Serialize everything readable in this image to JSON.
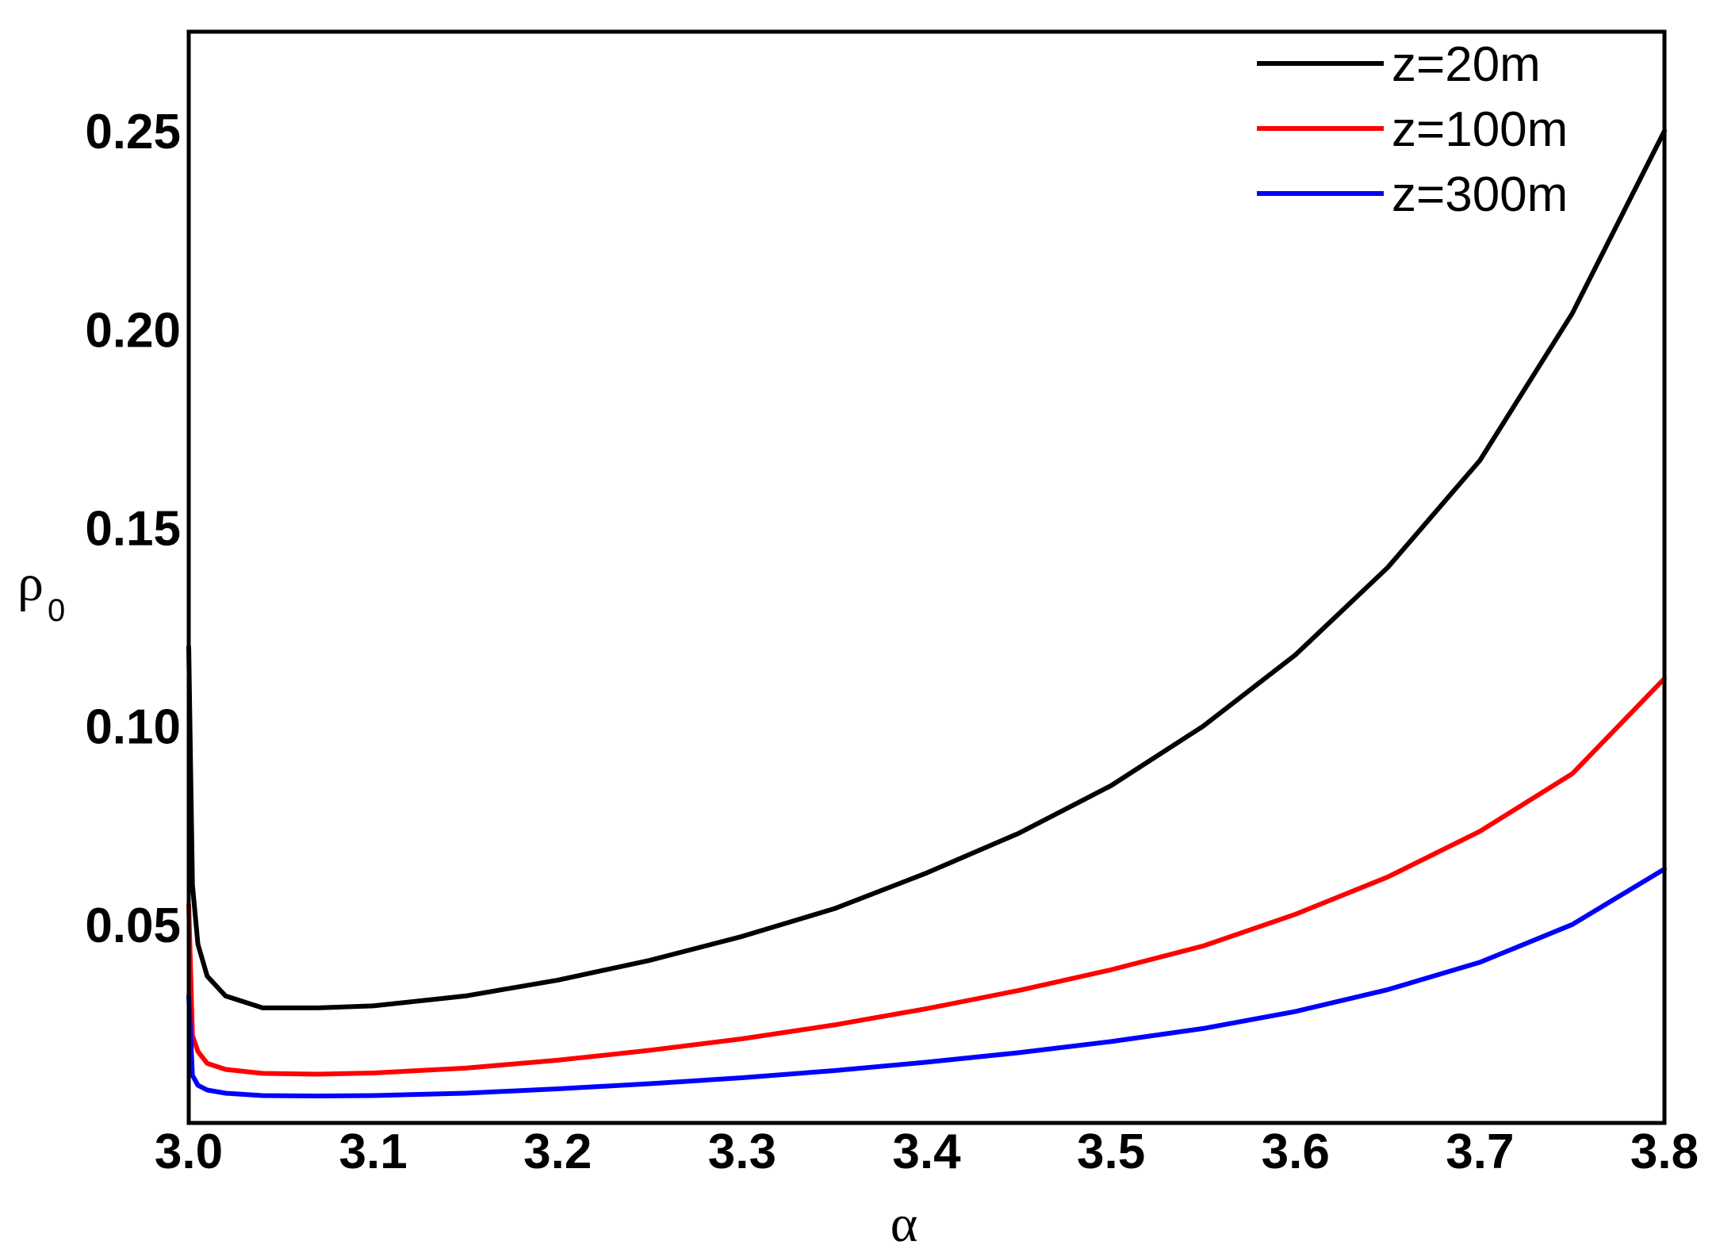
{
  "chart_data": {
    "type": "line",
    "title": "",
    "xlabel": "α",
    "ylabel": "ρ",
    "ylabel_subscript": "0",
    "xlim": [
      3.0,
      3.8
    ],
    "ylim": [
      0.0,
      0.275
    ],
    "x_ticks": [
      "3.0",
      "3.1",
      "3.2",
      "3.3",
      "3.4",
      "3.5",
      "3.6",
      "3.7",
      "3.8"
    ],
    "y_ticks": [
      "0.05",
      "0.10",
      "0.15",
      "0.20",
      "0.25"
    ],
    "grid": false,
    "legend_position": "top-right",
    "series": [
      {
        "name": "z=20m",
        "color": "#000000",
        "x": [
          3.0,
          3.002,
          3.005,
          3.01,
          3.02,
          3.04,
          3.07,
          3.1,
          3.15,
          3.2,
          3.25,
          3.3,
          3.35,
          3.4,
          3.45,
          3.5,
          3.55,
          3.6,
          3.65,
          3.7,
          3.75,
          3.8
        ],
        "y": [
          0.12,
          0.06,
          0.045,
          0.037,
          0.032,
          0.029,
          0.029,
          0.0295,
          0.032,
          0.036,
          0.041,
          0.047,
          0.054,
          0.063,
          0.073,
          0.085,
          0.1,
          0.118,
          0.14,
          0.167,
          0.204,
          0.25
        ]
      },
      {
        "name": "z=100m",
        "color": "#ff0000",
        "x": [
          3.0,
          3.002,
          3.005,
          3.01,
          3.02,
          3.04,
          3.07,
          3.1,
          3.15,
          3.2,
          3.25,
          3.3,
          3.35,
          3.4,
          3.45,
          3.5,
          3.55,
          3.6,
          3.65,
          3.7,
          3.75,
          3.8
        ],
        "y": [
          0.055,
          0.022,
          0.018,
          0.015,
          0.0135,
          0.0125,
          0.0123,
          0.0126,
          0.0138,
          0.0158,
          0.0183,
          0.0212,
          0.0247,
          0.0288,
          0.0334,
          0.0386,
          0.0446,
          0.0526,
          0.062,
          0.0735,
          0.088,
          0.112
        ]
      },
      {
        "name": "z=300m",
        "color": "#0000ff",
        "x": [
          3.0,
          3.002,
          3.005,
          3.01,
          3.02,
          3.04,
          3.07,
          3.1,
          3.15,
          3.2,
          3.25,
          3.3,
          3.35,
          3.4,
          3.45,
          3.5,
          3.55,
          3.6,
          3.65,
          3.7,
          3.75,
          3.8
        ],
        "y": [
          0.032,
          0.012,
          0.0095,
          0.0083,
          0.0075,
          0.0069,
          0.0068,
          0.0069,
          0.0075,
          0.0086,
          0.0099,
          0.0114,
          0.0132,
          0.0153,
          0.0177,
          0.0205,
          0.0238,
          0.0281,
          0.0336,
          0.0405,
          0.05,
          0.064
        ]
      }
    ]
  }
}
